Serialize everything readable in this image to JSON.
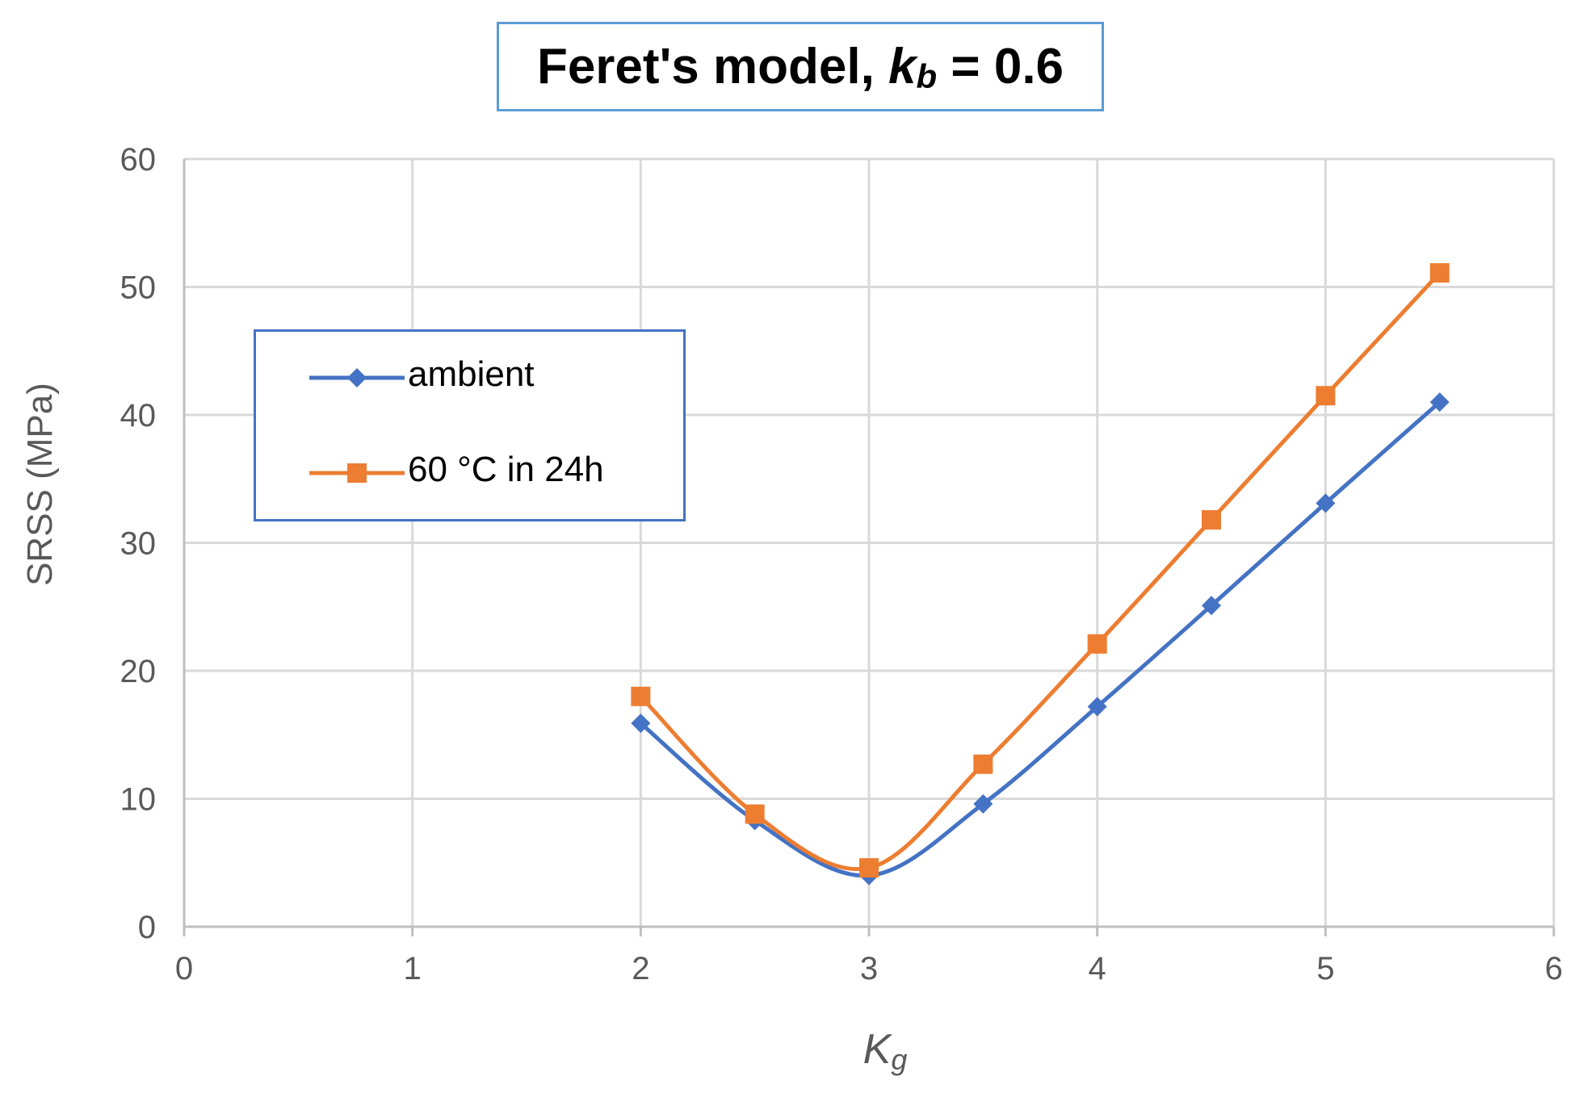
{
  "chart_data": {
    "type": "line",
    "title": {
      "prefix": "Feret's model, ",
      "var_main": "k",
      "var_sub": "b",
      "suffix": " = 0.6"
    },
    "xlabel": {
      "main": "K",
      "sub": "g"
    },
    "ylabel": "SRSS (MPa)",
    "xlim": [
      0,
      6
    ],
    "ylim": [
      0,
      60
    ],
    "xticks": [
      0,
      1,
      2,
      3,
      4,
      5,
      6
    ],
    "yticks": [
      0,
      10,
      20,
      30,
      40,
      50,
      60
    ],
    "grid": true,
    "legend_position": "top-left, inside plot",
    "series": [
      {
        "name": "ambient",
        "color": "#4472C4",
        "marker": "diamond",
        "x": [
          2,
          2.5,
          3,
          3.5,
          4,
          4.5,
          5,
          5.5
        ],
        "y": [
          15.9,
          8.3,
          4.0,
          9.6,
          17.2,
          25.1,
          33.1,
          41.0
        ]
      },
      {
        "name": "60 °C in 24h",
        "color": "#ED7D31",
        "marker": "square",
        "x": [
          2,
          2.5,
          3,
          3.5,
          4,
          4.5,
          5,
          5.5
        ],
        "y": [
          18.0,
          8.8,
          4.6,
          12.7,
          22.1,
          31.8,
          41.5,
          51.1
        ]
      }
    ]
  }
}
